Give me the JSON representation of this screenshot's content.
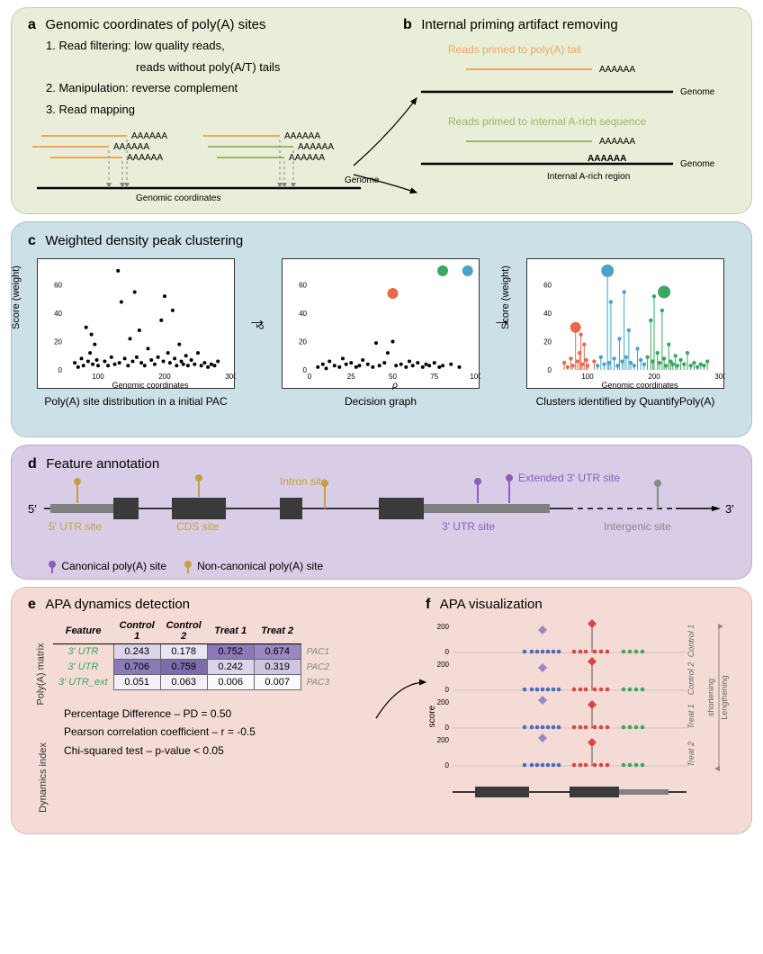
{
  "panel_ab": {
    "a_label": "a",
    "a_title": "Genomic coordinates of poly(A) sites",
    "steps": [
      "1. Read filtering: low quality reads,",
      "        reads without poly(A/T) tails",
      "2. Manipulation: reverse complement",
      "3. Read mapping"
    ],
    "genomic_coord_label": "Genomic coordinates",
    "genome_label": "Genome",
    "polyA_tag": "AAAAAA",
    "b_label": "b",
    "b_title": "Internal priming artifact removing",
    "b_top_label": "Reads primed to poly(A) tail",
    "b_bot_label": "Reads primed to internal A-rich sequence",
    "b_internal_region": "Internal A-rich region",
    "colors": {
      "orange": "#f4a460",
      "olive": "#9db56a",
      "green": "#3aa85f",
      "gray": "#888888"
    }
  },
  "panel_c": {
    "label": "c",
    "title": "Weighted density peak clustering",
    "chart1": {
      "caption": "Poly(A) site distribution in a initial PAC",
      "xlabel": "Genomic coordinates",
      "ylabel": "Score (weight)",
      "xlim": [
        0,
        300
      ],
      "ylim": [
        0,
        70
      ],
      "xtick_step": 100,
      "ytick_step": 20
    },
    "chart2": {
      "caption": "Decision graph",
      "xlabel": "ρ",
      "ylabel": "δ",
      "highlight_colors": [
        "#e86a4a",
        "#3aa85f",
        "#4aa3c7"
      ]
    },
    "chart3": {
      "caption": "Clusters identified by QuantifyPoly(A)",
      "xlabel": "Genomic coordinates",
      "ylabel": "Score (weight)",
      "cluster_colors": [
        "#e86a4a",
        "#4aa3c7",
        "#3aa85f"
      ]
    },
    "scatter_points": [
      [
        65,
        5
      ],
      [
        70,
        2
      ],
      [
        75,
        8
      ],
      [
        78,
        3
      ],
      [
        82,
        30
      ],
      [
        85,
        6
      ],
      [
        88,
        12
      ],
      [
        90,
        25
      ],
      [
        92,
        4
      ],
      [
        95,
        18
      ],
      [
        98,
        7
      ],
      [
        100,
        3
      ],
      [
        110,
        6
      ],
      [
        115,
        3
      ],
      [
        120,
        9
      ],
      [
        125,
        4
      ],
      [
        130,
        70
      ],
      [
        132,
        5
      ],
      [
        135,
        48
      ],
      [
        140,
        8
      ],
      [
        145,
        3
      ],
      [
        148,
        22
      ],
      [
        152,
        6
      ],
      [
        155,
        55
      ],
      [
        158,
        9
      ],
      [
        162,
        28
      ],
      [
        165,
        5
      ],
      [
        170,
        3
      ],
      [
        175,
        15
      ],
      [
        180,
        7
      ],
      [
        185,
        4
      ],
      [
        190,
        9
      ],
      [
        195,
        35
      ],
      [
        198,
        6
      ],
      [
        200,
        52
      ],
      [
        205,
        12
      ],
      [
        208,
        5
      ],
      [
        212,
        42
      ],
      [
        215,
        8
      ],
      [
        218,
        3
      ],
      [
        222,
        18
      ],
      [
        225,
        6
      ],
      [
        228,
        4
      ],
      [
        232,
        10
      ],
      [
        235,
        3
      ],
      [
        240,
        7
      ],
      [
        245,
        4
      ],
      [
        250,
        12
      ],
      [
        255,
        3
      ],
      [
        260,
        5
      ],
      [
        265,
        2
      ],
      [
        270,
        4
      ],
      [
        275,
        3
      ],
      [
        280,
        6
      ]
    ],
    "decision_points": [
      [
        5,
        2
      ],
      [
        8,
        4
      ],
      [
        10,
        1
      ],
      [
        12,
        6
      ],
      [
        15,
        3
      ],
      [
        18,
        2
      ],
      [
        20,
        8
      ],
      [
        22,
        4
      ],
      [
        25,
        5
      ],
      [
        28,
        2
      ],
      [
        30,
        3
      ],
      [
        32,
        7
      ],
      [
        35,
        4
      ],
      [
        38,
        2
      ],
      [
        40,
        19
      ],
      [
        42,
        3
      ],
      [
        45,
        5
      ],
      [
        47,
        12
      ],
      [
        50,
        20
      ],
      [
        52,
        3
      ],
      [
        55,
        4
      ],
      [
        58,
        2
      ],
      [
        60,
        6
      ],
      [
        62,
        3
      ],
      [
        65,
        5
      ],
      [
        68,
        2
      ],
      [
        70,
        4
      ],
      [
        72,
        3
      ],
      [
        75,
        5
      ],
      [
        78,
        2
      ],
      [
        80,
        3
      ],
      [
        85,
        4
      ],
      [
        90,
        2
      ]
    ],
    "decision_highlights": [
      [
        50,
        54,
        "#e86a4a"
      ],
      [
        80,
        70,
        "#3aa85f"
      ],
      [
        95,
        70,
        "#4aa3c7"
      ]
    ]
  },
  "panel_d": {
    "label": "d",
    "title": "Feature annotation",
    "labels": {
      "five_prime": "5'",
      "three_prime": "3'",
      "utr5": "5' UTR site",
      "cds": "CDS site",
      "intron": "Intron site",
      "utr3": "3' UTR site",
      "ext3": "Extended 3' UTR site",
      "intergenic": "Intergenic site"
    },
    "legend": {
      "canonical": "Canonical poly(A) site",
      "noncanonical": "Non-canonical poly(A) site",
      "canonical_color": "#8a5ebf",
      "noncanonical_color": "#c4a042"
    },
    "exon_color": "#3a3a3a",
    "utr_color": "#808080"
  },
  "panel_ef": {
    "e_label": "e",
    "e_title": "APA dynamics detection",
    "f_label": "f",
    "f_title": "APA visualization",
    "matrix_section": "Poly(A) matrix",
    "dynamics_section": "Dynamics index",
    "table": {
      "header": [
        "Feature",
        "Control 1",
        "Control 2",
        "Treat 1",
        "Treat 2"
      ],
      "rows": [
        {
          "feature": "3' UTR",
          "vals": [
            "0.243",
            "0.178",
            "0.752",
            "0.674"
          ],
          "pac": "PAC1",
          "colors": [
            "#dcd4ea",
            "#eae5f2",
            "#8b79b8",
            "#9a88c2"
          ]
        },
        {
          "feature": "3' UTR",
          "vals": [
            "0.706",
            "0.759",
            "0.242",
            "0.319"
          ],
          "pac": "PAC2",
          "colors": [
            "#8b79b8",
            "#7d6bad",
            "#dcd4ea",
            "#cfc5e2"
          ]
        },
        {
          "feature": "3' UTR_ext",
          "vals": [
            "0.051",
            "0.063",
            "0.006",
            "0.007"
          ],
          "pac": "PAC3",
          "colors": [
            "#f3f0f8",
            "#f3f0f8",
            "#faf9fc",
            "#faf9fc"
          ]
        }
      ]
    },
    "dynamics": {
      "pd": "Percentage Difference  –  PD = 0.50",
      "pearson": "Pearson correlation coefficient  –  r = -0.5",
      "chi": "Chi-squared test  –  p-value < 0.05"
    },
    "viz": {
      "row_labels": [
        "Control 1",
        "Control 2",
        "Treat 1",
        "Treat 2"
      ],
      "side_labels": [
        "shortening",
        "Lengthening"
      ],
      "y_max": 200,
      "ytick": 150,
      "ylabel": "score",
      "colors": {
        "blue": "#4a6bbf",
        "red": "#d84545",
        "green": "#3aa85f",
        "gray": "#9a88c2"
      }
    }
  }
}
